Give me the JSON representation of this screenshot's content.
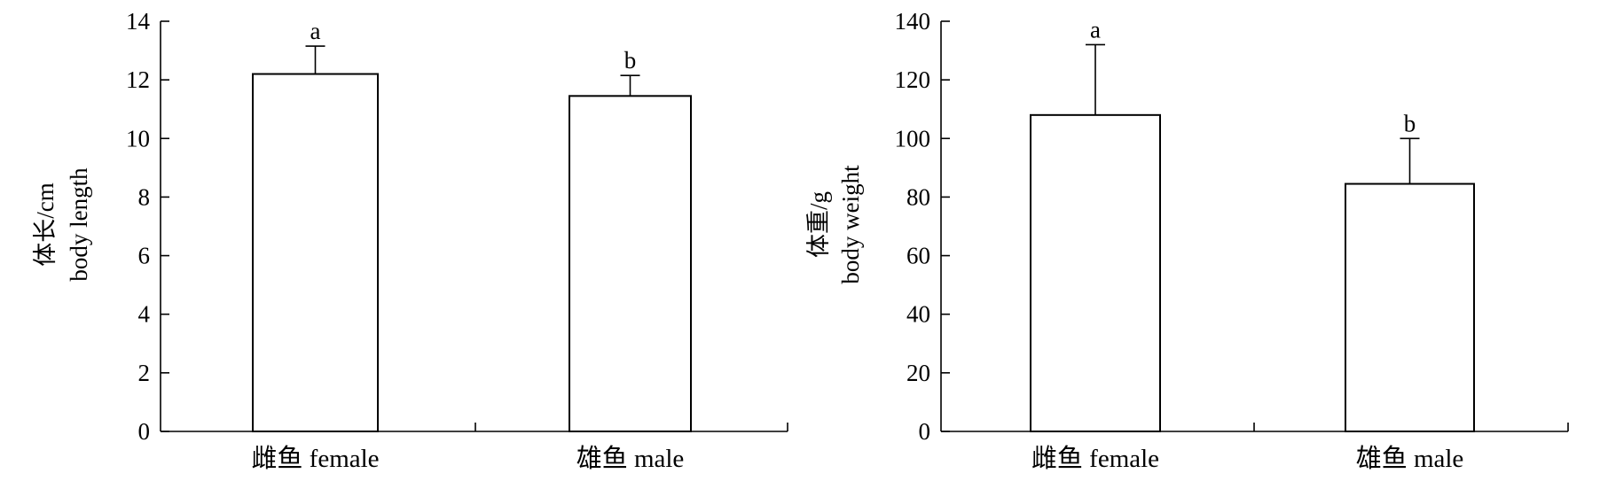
{
  "chart_data": [
    {
      "type": "bar",
      "categories": [
        "雌鱼 female",
        "雄鱼 male"
      ],
      "values": [
        12.2,
        11.45
      ],
      "errors": [
        0.95,
        0.7
      ],
      "significance": [
        "a",
        "b"
      ],
      "ylabel_cn": "体长/cm",
      "ylabel_en": "body length",
      "ylim": [
        0,
        14
      ],
      "yticks": [
        0,
        2,
        4,
        6,
        8,
        10,
        12,
        14
      ]
    },
    {
      "type": "bar",
      "categories": [
        "雌鱼 female",
        "雄鱼 male"
      ],
      "values": [
        108,
        84.5
      ],
      "errors": [
        24,
        15.5
      ],
      "significance": [
        "a",
        "b"
      ],
      "ylabel_cn": "体重/g",
      "ylabel_en": "body weight",
      "ylim": [
        0,
        140
      ],
      "yticks": [
        0,
        20,
        40,
        60,
        80,
        100,
        120,
        140
      ]
    }
  ]
}
